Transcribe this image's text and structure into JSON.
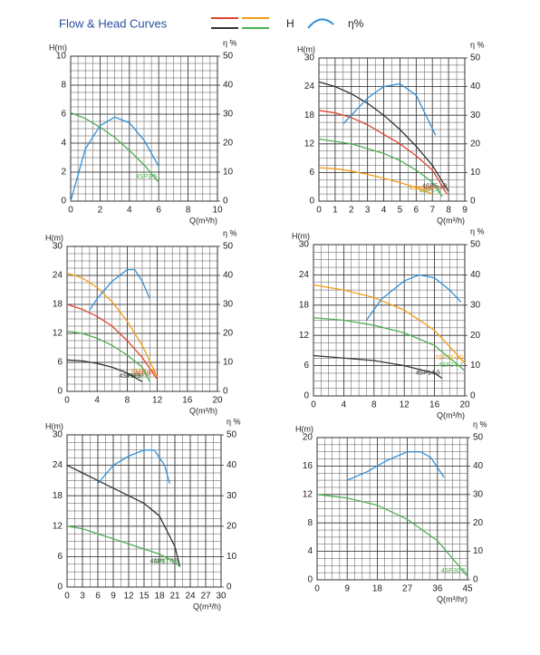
{
  "title": "Flow & Head Curves",
  "legend": {
    "head": "H",
    "efficiency": "η%"
  },
  "chart_data": [
    {
      "type": "line",
      "xlabel": "Q(m³/h)",
      "ylabel": "H(m)",
      "y2label": "η %",
      "xlim": [
        0,
        10
      ],
      "xticks": [
        0,
        2,
        4,
        6,
        8,
        10
      ],
      "ylim": [
        0,
        10
      ],
      "yticks": [
        0,
        2,
        4,
        6,
        8,
        10
      ],
      "y2lim": [
        0,
        50
      ],
      "y2ticks": [
        0,
        10,
        20,
        30,
        40,
        50
      ],
      "grid": true,
      "series": [
        {
          "name": "4SP3-5",
          "color": "#4caf50",
          "x": [
            0,
            1,
            2,
            3,
            4,
            5,
            6
          ],
          "values": [
            6.1,
            5.7,
            5.1,
            4.4,
            3.5,
            2.5,
            1.3
          ]
        },
        {
          "color": "#2f8fd8",
          "axis": "y2",
          "x": [
            0,
            1,
            2,
            3,
            4,
            5,
            6
          ],
          "values": [
            0,
            18,
            26,
            29,
            27,
            21,
            12
          ]
        }
      ]
    },
    {
      "type": "line",
      "xlabel": "Q(m³/h)",
      "ylabel": "H(m)",
      "y2label": "η %",
      "xlim": [
        0,
        9
      ],
      "xticks": [
        0,
        1,
        2,
        3,
        4,
        5,
        6,
        7,
        8,
        9
      ],
      "ylim": [
        0,
        30
      ],
      "yticks": [
        0,
        6,
        12,
        18,
        24,
        30
      ],
      "y2lim": [
        0,
        50
      ],
      "y2ticks": [
        0,
        10,
        20,
        30,
        40,
        50
      ],
      "grid": true,
      "series": [
        {
          "name": "4SP5-10",
          "color": "#333333",
          "x": [
            0,
            1,
            2,
            3,
            4,
            5,
            6,
            7,
            8
          ],
          "values": [
            25,
            24,
            22.5,
            20.5,
            18,
            15,
            11.5,
            7.5,
            2
          ]
        },
        {
          "name": "4SP5-7",
          "color": "#e0452c",
          "x": [
            0,
            1,
            2,
            3,
            4,
            5,
            6,
            7,
            7.9
          ],
          "values": [
            19,
            18.5,
            17.5,
            16,
            14,
            12,
            9.5,
            6.5,
            1.5
          ]
        },
        {
          "name": "4SP5-5",
          "color": "#4caf50",
          "x": [
            0,
            1,
            2,
            3,
            4,
            5,
            6,
            7,
            7.6
          ],
          "values": [
            13,
            12.5,
            12,
            11,
            10,
            8.5,
            6.5,
            4,
            1
          ]
        },
        {
          "name": "4SP5-3",
          "color": "#f39c12",
          "x": [
            0,
            1,
            2,
            3,
            4,
            5,
            6,
            7
          ],
          "values": [
            7,
            6.8,
            6.3,
            5.6,
            4.8,
            3.9,
            2.8,
            1.5
          ]
        },
        {
          "color": "#2f8fd8",
          "axis": "y2",
          "x": [
            1.5,
            2,
            3,
            4,
            5,
            6,
            7.2
          ],
          "values": [
            27,
            30,
            36,
            40,
            41,
            37,
            23
          ]
        }
      ]
    },
    {
      "type": "line",
      "xlabel": "Q(m³/h)",
      "ylabel": "H(m)",
      "y2label": "η %",
      "xlim": [
        0,
        20
      ],
      "xticks": [
        0,
        4,
        8,
        12,
        16,
        20
      ],
      "ylim": [
        0,
        30
      ],
      "yticks": [
        0,
        6,
        12,
        18,
        24,
        30
      ],
      "y2lim": [
        0,
        50
      ],
      "y2ticks": [
        0,
        10,
        20,
        30,
        40,
        50
      ],
      "grid": true,
      "series": [
        {
          "name": "4SP8-10",
          "color": "#f39c12",
          "x": [
            0,
            2,
            4,
            6,
            8,
            10,
            12
          ],
          "values": [
            24.5,
            23.5,
            21.5,
            18.5,
            14.5,
            9.5,
            3
          ]
        },
        {
          "name": "4SP8-7",
          "color": "#e0452c",
          "x": [
            0,
            2,
            4,
            6,
            8,
            10,
            12
          ],
          "values": [
            18,
            17,
            15.5,
            13.5,
            10.5,
            7,
            2.5
          ]
        },
        {
          "name": "4SP8-5",
          "color": "#4caf50",
          "x": [
            0,
            2,
            4,
            6,
            8,
            10,
            11
          ],
          "values": [
            12.5,
            12,
            11,
            9.5,
            7.5,
            5,
            2
          ]
        },
        {
          "name": "4SP8-3",
          "color": "#333333",
          "x": [
            0,
            2,
            4,
            6,
            8,
            10
          ],
          "values": [
            6.5,
            6.3,
            5.8,
            5,
            3.8,
            2
          ]
        },
        {
          "color": "#2f8fd8",
          "axis": "y2",
          "x": [
            3,
            4,
            6,
            8,
            9,
            10,
            11
          ],
          "values": [
            28,
            32,
            38,
            42,
            42,
            38,
            32
          ]
        }
      ]
    },
    {
      "type": "line",
      "xlabel": "Q(m³/h)",
      "ylabel": "H(m)",
      "y2label": "η %",
      "xlim": [
        0,
        20
      ],
      "xticks": [
        0,
        4,
        8,
        12,
        16,
        20
      ],
      "ylim": [
        0,
        30
      ],
      "yticks": [
        0,
        6,
        12,
        18,
        24,
        30
      ],
      "y2lim": [
        0,
        50
      ],
      "y2ticks": [
        0,
        10,
        20,
        30,
        40,
        50
      ],
      "grid": true,
      "series": [
        {
          "name": "4SP14-10",
          "color": "#f39c12",
          "x": [
            0,
            4,
            8,
            12,
            16,
            20
          ],
          "values": [
            22,
            21,
            19.5,
            17,
            13,
            6.5
          ]
        },
        {
          "name": "4SP14-7",
          "color": "#4caf50",
          "x": [
            0,
            4,
            8,
            12,
            16,
            20
          ],
          "values": [
            15.5,
            15,
            14,
            12.5,
            10,
            5
          ]
        },
        {
          "name": "4SP14-5",
          "color": "#333333",
          "x": [
            0,
            4,
            8,
            12,
            16,
            17
          ],
          "values": [
            8,
            7.5,
            7,
            6,
            4.5,
            3.5
          ]
        },
        {
          "color": "#2f8fd8",
          "axis": "y2",
          "x": [
            7,
            9,
            12,
            14,
            16,
            18,
            19.5
          ],
          "values": [
            25,
            32,
            38,
            40,
            39,
            35,
            31
          ]
        }
      ]
    },
    {
      "type": "line",
      "xlabel": "Q(m³/h)",
      "ylabel": "H(m)",
      "y2label": "η %",
      "xlim": [
        0,
        30
      ],
      "xticks": [
        0,
        3,
        6,
        9,
        12,
        15,
        18,
        21,
        24,
        27,
        30
      ],
      "ylim": [
        0,
        30
      ],
      "yticks": [
        0,
        6,
        12,
        18,
        24,
        30
      ],
      "y2lim": [
        0,
        50
      ],
      "y2ticks": [
        0,
        10,
        20,
        30,
        40,
        50
      ],
      "grid": true,
      "series": [
        {
          "name": "4SP17-10",
          "color": "#333333",
          "x": [
            0,
            3,
            6,
            9,
            12,
            15,
            18,
            21,
            22
          ],
          "values": [
            24,
            22.5,
            21,
            19.5,
            18,
            16.5,
            14,
            8,
            4
          ]
        },
        {
          "name": "4SP17-5",
          "color": "#4caf50",
          "x": [
            0,
            3,
            6,
            9,
            12,
            15,
            18,
            21,
            22
          ],
          "values": [
            12,
            11.5,
            10.5,
            9.5,
            8.5,
            7.5,
            6.5,
            5,
            4
          ]
        },
        {
          "color": "#2f8fd8",
          "axis": "y2",
          "x": [
            6,
            9,
            12,
            15,
            17,
            19,
            20
          ],
          "values": [
            34,
            40,
            43,
            45,
            45,
            40,
            34
          ]
        }
      ]
    },
    {
      "type": "line",
      "xlabel": "Q(m³/hr)",
      "ylabel": "H(m)",
      "y2label": "η %",
      "xlim": [
        0,
        45
      ],
      "xticks": [
        0,
        9,
        18,
        27,
        36,
        45
      ],
      "ylim": [
        0,
        20
      ],
      "yticks": [
        0,
        4,
        8,
        12,
        16,
        20
      ],
      "y2lim": [
        0,
        50
      ],
      "y2ticks": [
        0,
        10,
        20,
        30,
        40,
        50
      ],
      "grid": true,
      "series": [
        {
          "name": "4SP30-5",
          "color": "#4caf50",
          "x": [
            0,
            9,
            18,
            27,
            36,
            45
          ],
          "values": [
            12,
            11.5,
            10.5,
            8.5,
            5.5,
            0.5
          ]
        },
        {
          "color": "#2f8fd8",
          "axis": "y2",
          "x": [
            9,
            15,
            21,
            27,
            31,
            34,
            38
          ],
          "values": [
            35,
            38,
            42,
            45,
            45,
            43,
            36
          ]
        }
      ]
    }
  ]
}
